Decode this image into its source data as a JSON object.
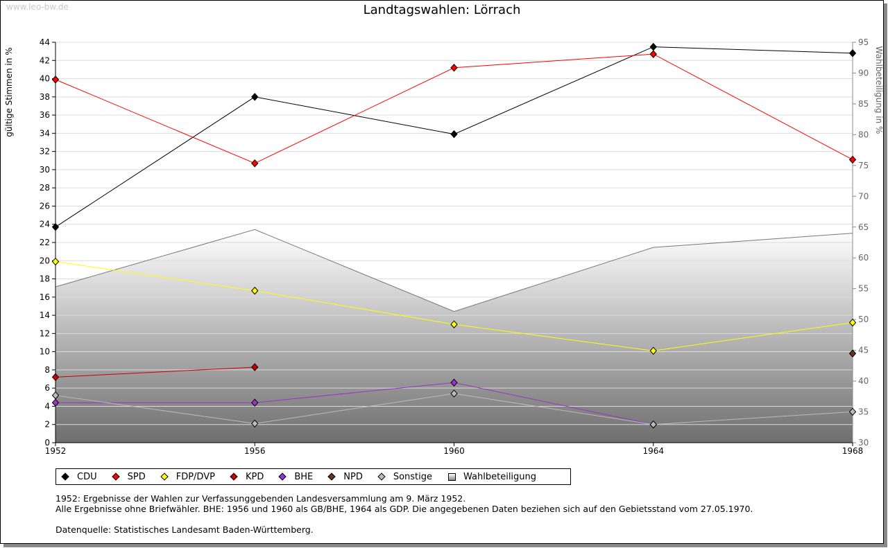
{
  "watermark": "www.leo-bw.de",
  "chart_data": {
    "type": "line",
    "title": "Landtagswahlen: Lörrach",
    "ylabel": "gültige Stimmen in %",
    "y2label": "Wahlbeteiligung in %",
    "x": [
      1952,
      1956,
      1960,
      1964,
      1968
    ],
    "ylim": [
      0,
      44
    ],
    "y2lim": [
      30,
      95
    ],
    "yticks": [
      0,
      2,
      4,
      6,
      8,
      10,
      12,
      14,
      16,
      18,
      20,
      22,
      24,
      26,
      28,
      30,
      32,
      34,
      36,
      38,
      40,
      42,
      44
    ],
    "y2ticks": [
      30,
      35,
      40,
      45,
      50,
      55,
      60,
      65,
      70,
      75,
      80,
      85,
      90,
      95
    ],
    "grid": true,
    "legend_position": "bottom",
    "series": [
      {
        "name": "CDU",
        "color": "#000000",
        "values": [
          23.7,
          38.0,
          33.9,
          43.5,
          42.8
        ]
      },
      {
        "name": "SPD",
        "color": "#ff0000",
        "values": [
          39.9,
          30.7,
          41.2,
          42.7,
          31.1
        ]
      },
      {
        "name": "FDP/DVP",
        "color": "#ffff00",
        "values": [
          19.9,
          16.7,
          13.0,
          10.1,
          13.2
        ]
      },
      {
        "name": "KPD",
        "color": "#cc0000",
        "values": [
          7.2,
          8.3,
          null,
          null,
          null
        ]
      },
      {
        "name": "BHE",
        "color": "#9933cc",
        "values": [
          4.4,
          4.4,
          6.6,
          2.0,
          null
        ]
      },
      {
        "name": "NPD",
        "color": "#663322",
        "values": [
          null,
          null,
          null,
          null,
          9.8
        ]
      },
      {
        "name": "Sonstige",
        "color": "#bbbbbb",
        "values": [
          5.2,
          2.1,
          5.4,
          2.0,
          3.4
        ]
      }
    ],
    "area": {
      "name": "Wahlbeteiligung",
      "axis": "right",
      "values": [
        55.3,
        64.6,
        51.3,
        61.7,
        64.0
      ]
    }
  },
  "notes": [
    "1952: Ergebnisse der Wahlen zur Verfassunggebenden Landesversammlung am 9. März 1952.",
    "Alle Ergebnisse ohne Briefwähler. BHE: 1956 und 1960 als GB/BHE, 1964 als GDP. Die angegebenen Daten beziehen sich auf den Gebietsstand vom 27.05.1970.",
    "",
    "Datenquelle: Statistisches Landesamt Baden-Württemberg."
  ]
}
